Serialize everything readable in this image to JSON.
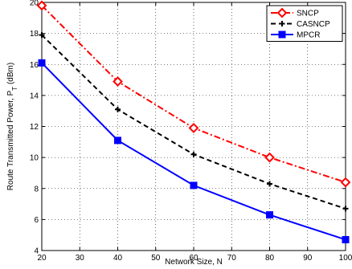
{
  "chart_data": {
    "type": "line",
    "xlabel": "Network Size, N",
    "ylabel_main": "Route Transmitted Power, P",
    "ylabel_sub": "T",
    "ylabel_unit": " (dBm)",
    "xlim": [
      20,
      100
    ],
    "ylim": [
      4,
      20
    ],
    "xticks": [
      20,
      30,
      40,
      50,
      60,
      70,
      80,
      90,
      100
    ],
    "yticks": [
      4,
      6,
      8,
      10,
      12,
      14,
      16,
      18,
      20
    ],
    "grid": true,
    "legend_position": "top-right",
    "x": [
      20,
      40,
      60,
      80,
      100
    ],
    "series": [
      {
        "name": "SNCP",
        "values": [
          19.8,
          14.9,
          11.9,
          10.0,
          8.4
        ],
        "color": "#ff0000",
        "dash": "dash-dot",
        "marker": "diamond"
      },
      {
        "name": "CASNCP",
        "values": [
          17.9,
          13.1,
          10.2,
          8.3,
          6.7
        ],
        "color": "#000000",
        "dash": "dashed",
        "marker": "plus"
      },
      {
        "name": "MPCR",
        "values": [
          16.1,
          11.1,
          8.2,
          6.3,
          4.7
        ],
        "color": "#0000ff",
        "dash": "solid",
        "marker": "square"
      }
    ]
  }
}
